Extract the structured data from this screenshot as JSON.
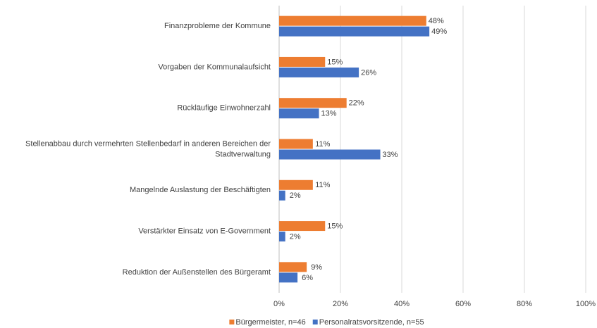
{
  "chart_data": {
    "type": "hbar",
    "categories": [
      "Finanzprobleme der Kommune",
      "Vorgaben der Kommunalaufsicht",
      "Rückläufige Einwohnerzahl",
      "Stellenabbau durch vermehrten Stellenbedarf in anderen Bereichen der Stadtverwaltung",
      "Mangelnde Auslastung der Beschäftigten",
      "Verstärkter Einsatz von E-Government",
      "Reduktion der Außenstellen des Bürgeramt"
    ],
    "series": [
      {
        "name": "Bürgermeister, n=46",
        "color": "#ed7d31",
        "values": [
          48,
          15,
          22,
          11,
          11,
          15,
          9
        ],
        "value_labels": [
          "48%",
          "15%",
          "22%",
          "11%",
          "11%",
          "15%",
          "9%"
        ]
      },
      {
        "name": "Personalratsvorsitzende, n=55",
        "color": "#4472c4",
        "values": [
          49,
          26,
          13,
          33,
          2,
          2,
          6
        ],
        "value_labels": [
          "49%",
          "26%",
          "13%",
          "33%",
          "2%",
          "2%",
          "6%"
        ]
      }
    ],
    "xlim": [
      0,
      100
    ],
    "xticks": [
      {
        "value": 0,
        "label": "0%"
      },
      {
        "value": 20,
        "label": "20%"
      },
      {
        "value": 40,
        "label": "40%"
      },
      {
        "value": 60,
        "label": "60%"
      },
      {
        "value": 80,
        "label": "80%"
      },
      {
        "value": 100,
        "label": "100%"
      }
    ],
    "grid": true,
    "legend": "bottom"
  }
}
